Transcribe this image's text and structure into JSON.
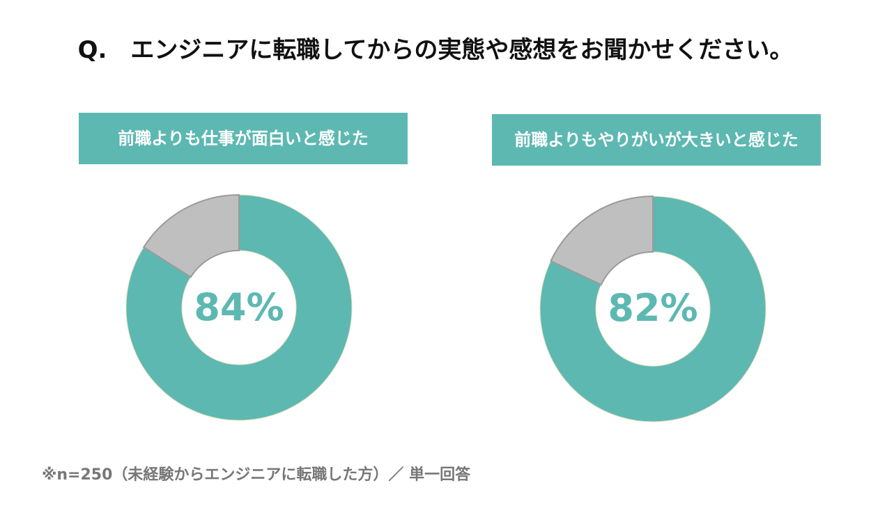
{
  "question": "Q.　エンジニアに転職してからの実態や感想をお聞かせください。",
  "footnote": "※n=250（未経験からエンジニアに転職した方）／ 単一回答",
  "colors": {
    "accent": "#5db8b2",
    "remainder": "#bfbfbf",
    "title_text": "#111111",
    "footnote_text": "#777777",
    "label_box_text": "#ffffff"
  },
  "chart_data": [
    {
      "type": "pie",
      "title": "前職よりも仕事が面白いと感じた",
      "slices": [
        {
          "label": "",
          "value": 84,
          "color": "#5db8b2"
        },
        {
          "label": "",
          "value": 16,
          "color": "#bfbfbf"
        }
      ],
      "center_label": "84%"
    },
    {
      "type": "pie",
      "title": "前職よりもやりがいが大きいと感じた",
      "slices": [
        {
          "label": "",
          "value": 82,
          "color": "#5db8b2"
        },
        {
          "label": "",
          "value": 18,
          "color": "#bfbfbf"
        }
      ],
      "center_label": "82%"
    }
  ]
}
